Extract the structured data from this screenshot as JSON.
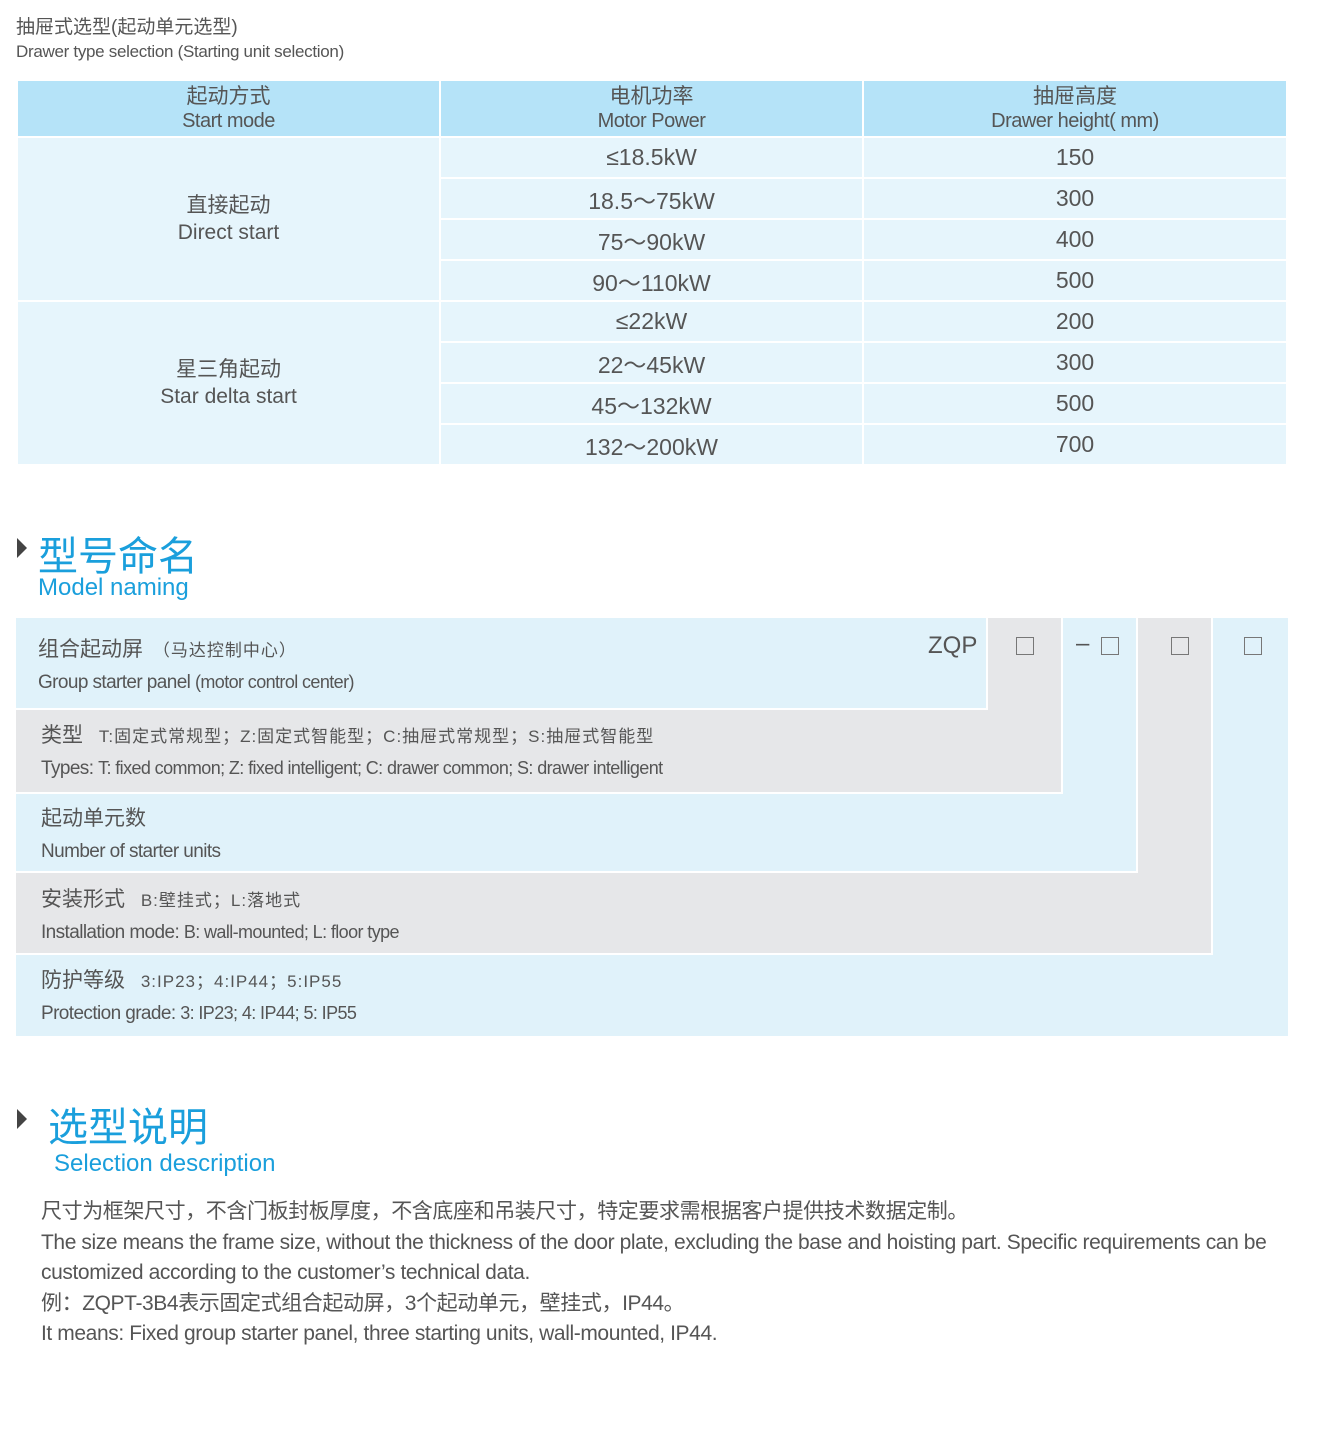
{
  "caption": {
    "zh": "抽屉式选型(起动单元选型)",
    "en": "Drawer type selection (Starting unit selection)"
  },
  "table": {
    "headers": [
      {
        "zh": "起动方式",
        "en": "Start mode"
      },
      {
        "zh": "电机功率",
        "en": "Motor Power"
      },
      {
        "zh": "抽屉高度",
        "en": "Drawer height( mm)"
      }
    ],
    "groups": [
      {
        "zh": "直接起动",
        "en": "Direct start",
        "rows": [
          [
            "≤18.5kW",
            "150"
          ],
          [
            "18.5～75kW",
            "300"
          ],
          [
            "75～90kW",
            "400"
          ],
          [
            "90～110kW",
            "500"
          ]
        ]
      },
      {
        "zh": "星三角起动",
        "en": "Star delta start",
        "rows": [
          [
            "≤22kW",
            "200"
          ],
          [
            "22～45kW",
            "300"
          ],
          [
            "45～132kW",
            "500"
          ],
          [
            "132～200kW",
            "700"
          ]
        ]
      }
    ]
  },
  "model_naming": {
    "title_zh": "型号命名",
    "title_en": "Model naming",
    "code_prefix": "ZQP",
    "dash": "–",
    "rows": [
      {
        "zh": "组合起动屏",
        "zh_note": "（马达控制中心）",
        "en": "Group starter panel",
        "en_note": "(motor control center)"
      },
      {
        "zh": "类型",
        "zh_note": "T:固定式常规型；Z:固定式智能型；C:抽屉式常规型；S:抽屉式智能型",
        "en": "Types:",
        "en_note": "T: fixed common; Z: fixed intelligent; C: drawer common; S: drawer intelligent"
      },
      {
        "zh": "起动单元数",
        "zh_note": "",
        "en": "Number of starter units",
        "en_note": ""
      },
      {
        "zh": "安装形式",
        "zh_note": "B:壁挂式；L:落地式",
        "en": "Installation mode:",
        "en_note": "B: wall-mounted; L: floor type"
      },
      {
        "zh": "防护等级",
        "zh_note": "3:IP23；4:IP44；5:IP55",
        "en": "Protection grade:",
        "en_note": "3: IP23; 4: IP44; 5: IP55"
      }
    ],
    "colors": {
      "blue": "#e0f2fa",
      "gray": "#e6e7e9",
      "accent": "#1a9fdc"
    }
  },
  "selection": {
    "title_zh": "选型说明",
    "title_en": "Selection description",
    "lines": [
      "尺寸为框架尺寸，不含门板封板厚度，不含底座和吊装尺寸，特定要求需根据客户提供技术数据定制。",
      "The size means the frame size, without the thickness of the door plate, excluding the base and hoisting part. Specific requirements can be",
      "customized according to the customer’s technical data.",
      "例：ZQPT-3B4表示固定式组合起动屏，3个起动单元，壁挂式，IP44。",
      "It means: Fixed group starter panel, three starting units, wall-mounted, IP44."
    ]
  }
}
